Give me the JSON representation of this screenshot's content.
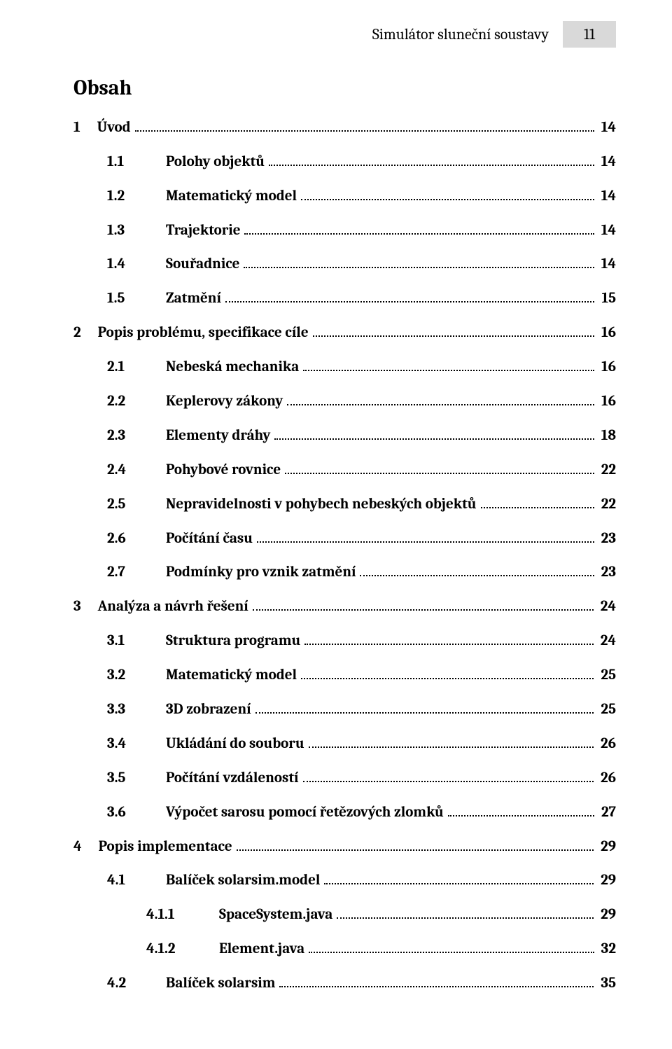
{
  "header": {
    "running_title": "Simulátor sluneční soustavy",
    "page_number": "11"
  },
  "title": "Obsah",
  "toc": [
    {
      "level": 1,
      "num": "1",
      "title": "Úvod",
      "page": "14"
    },
    {
      "level": 2,
      "num": "1.1",
      "title": "Polohy objektů",
      "page": "14"
    },
    {
      "level": 2,
      "num": "1.2",
      "title": "Matematický model",
      "page": "14"
    },
    {
      "level": 2,
      "num": "1.3",
      "title": "Trajektorie",
      "page": "14"
    },
    {
      "level": 2,
      "num": "1.4",
      "title": "Souřadnice",
      "page": "14"
    },
    {
      "level": 2,
      "num": "1.5",
      "title": "Zatmění",
      "page": "15"
    },
    {
      "level": 1,
      "num": "2",
      "title": "Popis problému, specifikace cíle",
      "page": "16"
    },
    {
      "level": 2,
      "num": "2.1",
      "title": "Nebeská mechanika",
      "page": "16"
    },
    {
      "level": 2,
      "num": "2.2",
      "title": "Keplerovy zákony",
      "page": "16"
    },
    {
      "level": 2,
      "num": "2.3",
      "title": "Elementy dráhy",
      "page": "18"
    },
    {
      "level": 2,
      "num": "2.4",
      "title": "Pohybové rovnice",
      "page": "22"
    },
    {
      "level": 2,
      "num": "2.5",
      "title": "Nepravidelnosti v pohybech nebeských objektů",
      "page": "22"
    },
    {
      "level": 2,
      "num": "2.6",
      "title": "Počítání času",
      "page": "23"
    },
    {
      "level": 2,
      "num": "2.7",
      "title": "Podmínky pro vznik zatmění",
      "page": "23"
    },
    {
      "level": 1,
      "num": "3",
      "title": "Analýza a návrh řešení",
      "page": "24"
    },
    {
      "level": 2,
      "num": "3.1",
      "title": "Struktura programu",
      "page": "24"
    },
    {
      "level": 2,
      "num": "3.2",
      "title": "Matematický model",
      "page": "25"
    },
    {
      "level": 2,
      "num": "3.3",
      "title": "3D zobrazení",
      "page": "25"
    },
    {
      "level": 2,
      "num": "3.4",
      "title": "Ukládání do souboru",
      "page": "26"
    },
    {
      "level": 2,
      "num": "3.5",
      "title": "Počítání vzdáleností",
      "page": "26"
    },
    {
      "level": 2,
      "num": "3.6",
      "title": "Výpočet sarosu pomocí řetězových zlomků",
      "page": "27"
    },
    {
      "level": 1,
      "num": "4",
      "title": "Popis implementace",
      "page": "29"
    },
    {
      "level": 2,
      "num": "4.1",
      "title": "Balíček solarsim.model",
      "page": "29"
    },
    {
      "level": 3,
      "num": "4.1.1",
      "title": "SpaceSystem.java",
      "page": "29"
    },
    {
      "level": 3,
      "num": "4.1.2",
      "title": "Element.java",
      "page": "32"
    },
    {
      "level": 2,
      "num": "4.2",
      "title": "Balíček solarsim",
      "page": "35"
    }
  ]
}
